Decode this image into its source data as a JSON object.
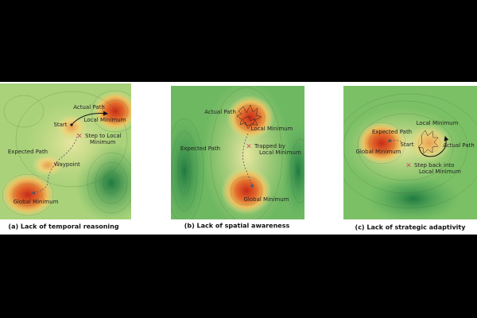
{
  "panels": [
    {
      "caption": "(a) Lack of temporal reasoning",
      "labels": [
        {
          "lines": [
            "Actual Path"
          ]
        },
        {
          "lines": [
            "Start"
          ]
        },
        {
          "lines": [
            "Local Minimum"
          ]
        },
        {
          "lines": [
            "Step to Local",
            "Minimum"
          ]
        },
        {
          "lines": [
            "Expected Path"
          ]
        },
        {
          "lines": [
            "Waypoint"
          ]
        },
        {
          "lines": [
            "Global Minimum"
          ]
        }
      ]
    },
    {
      "caption": "(b) Lack of spatial awareness",
      "labels": [
        {
          "lines": [
            "Actual Path"
          ]
        },
        {
          "lines": [
            "Local Minimum"
          ]
        },
        {
          "lines": [
            "Expected Path"
          ]
        },
        {
          "lines": [
            "Trapped by",
            "Local Minimum"
          ]
        },
        {
          "lines": [
            "Global Minimum"
          ]
        }
      ]
    },
    {
      "caption": "(c) Lack of strategic adaptivity",
      "labels": [
        {
          "lines": [
            "Expected Path"
          ]
        },
        {
          "lines": [
            "Local Minimum"
          ]
        },
        {
          "lines": [
            "Start"
          ]
        },
        {
          "lines": [
            "Actual Path"
          ]
        },
        {
          "lines": [
            "Global Minimum"
          ]
        },
        {
          "lines": [
            "Step back into",
            "Local Minimum"
          ]
        }
      ]
    }
  ]
}
